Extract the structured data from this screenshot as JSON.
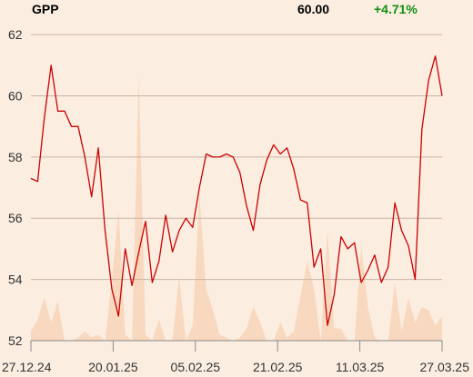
{
  "header": {
    "symbol": "GPP",
    "price": "60.00",
    "change": "+4.71%"
  },
  "colors": {
    "background": "#fbeee1",
    "line": "#cc0000",
    "volume": "#f8d9bf",
    "grid": "#c9b3a6",
    "change_positive": "#109010"
  },
  "chart_data": {
    "type": "line",
    "title": "",
    "xlabel": "",
    "ylabel": "",
    "ylim": [
      52,
      62.3
    ],
    "yticks": [
      52,
      54,
      56,
      58,
      60,
      62
    ],
    "ytick_labels": [
      "52",
      "54",
      "56",
      "58",
      "60",
      "62"
    ],
    "xticks": [
      "27.12.24",
      "20.01.25",
      "05.02.25",
      "21.02.25",
      "11.03.25",
      "27.03.25"
    ],
    "grid": true,
    "series": [
      {
        "values": [
          57.3,
          57.2,
          59.3,
          61.0,
          59.5,
          59.5,
          59.0,
          59.0,
          58.0,
          56.7,
          58.3,
          55.6,
          53.7,
          52.8,
          55.0,
          53.8,
          54.9,
          55.9,
          53.9,
          54.6,
          56.1,
          54.9,
          55.6,
          56.0,
          55.7,
          57.0,
          58.1,
          58.0,
          58.0,
          58.1,
          58.0,
          57.5,
          56.4,
          55.6,
          57.1,
          57.9,
          58.4,
          58.1,
          58.3,
          57.6,
          56.6,
          56.5,
          54.4,
          55.0,
          52.5,
          53.5,
          55.4,
          55.0,
          55.2,
          53.9,
          54.3,
          54.8,
          53.9,
          54.4,
          56.5,
          55.6,
          55.1,
          54.0,
          58.9,
          60.5,
          61.3,
          60.0
        ]
      },
      {
        "values": [
          52.3,
          52.7,
          53.4,
          52.6,
          53.3,
          52.0,
          52.0,
          52.1,
          52.3,
          52.1,
          52.2,
          52.0,
          54.0,
          56.3,
          52.2,
          52.0,
          60.7,
          52.2,
          52.0,
          52.7,
          52.0,
          52.0,
          54.1,
          52.0,
          52.5,
          56.8,
          53.7,
          53.0,
          52.2,
          52.1,
          52.0,
          52.1,
          52.4,
          53.1,
          52.6,
          52.0,
          52.0,
          52.6,
          52.1,
          52.3,
          53.5,
          54.6,
          53.7,
          52.0,
          55.6,
          52.4,
          52.4,
          52.0,
          52.0,
          55.1,
          53.1,
          52.1,
          52.0,
          52.0,
          53.9,
          52.3,
          53.4,
          52.6,
          53.1,
          53.0,
          52.5,
          52.8
        ]
      }
    ]
  }
}
